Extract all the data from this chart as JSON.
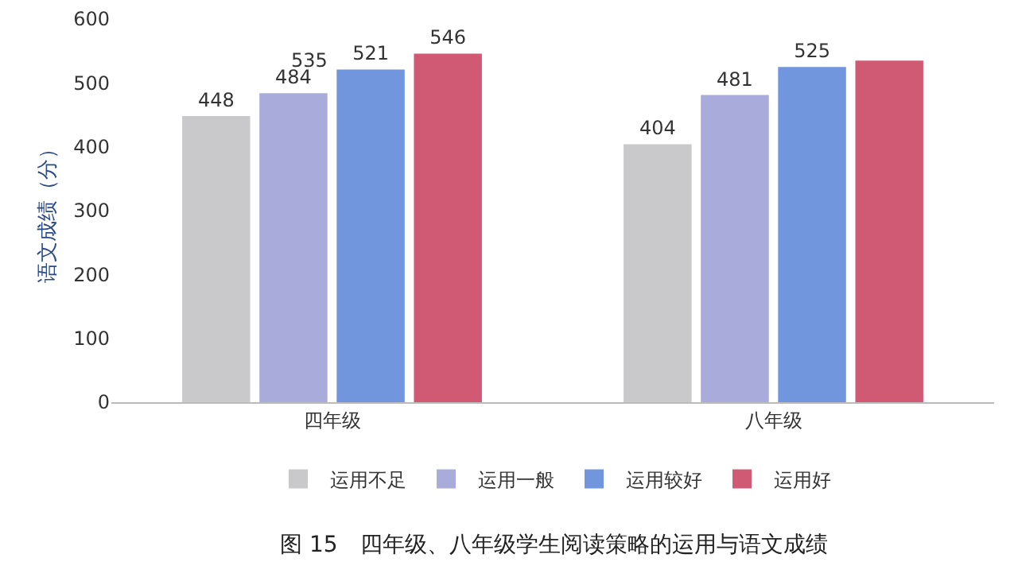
{
  "chart_data": {
    "type": "bar",
    "title": "图 15　四年级、八年级学生阅读策略的运用与语文成绩",
    "ylabel": "语文成绩（分）",
    "categories": [
      "四年级",
      "八年级"
    ],
    "series": [
      {
        "name": "运用不足",
        "color": "#c9c8ca",
        "values": [
          448,
          404
        ],
        "value_labels": [
          "448",
          "404"
        ]
      },
      {
        "name": "运用一般",
        "color": "#a9acdb",
        "values": [
          484,
          481
        ],
        "value_labels": [
          "484",
          "481"
        ]
      },
      {
        "name": "运用较好",
        "color": "#7196dd",
        "values": [
          521,
          525
        ],
        "value_labels": [
          "521",
          "525"
        ]
      },
      {
        "name": "运用好",
        "color": "#d05a74",
        "values": [
          546,
          535
        ],
        "value_labels": [
          "546",
          null
        ]
      }
    ],
    "annotations": [
      "535"
    ],
    "ylim": [
      0,
      600
    ],
    "yticks": [
      0,
      100,
      200,
      300,
      400,
      500,
      600
    ],
    "grid": false,
    "legend": "bottom"
  }
}
